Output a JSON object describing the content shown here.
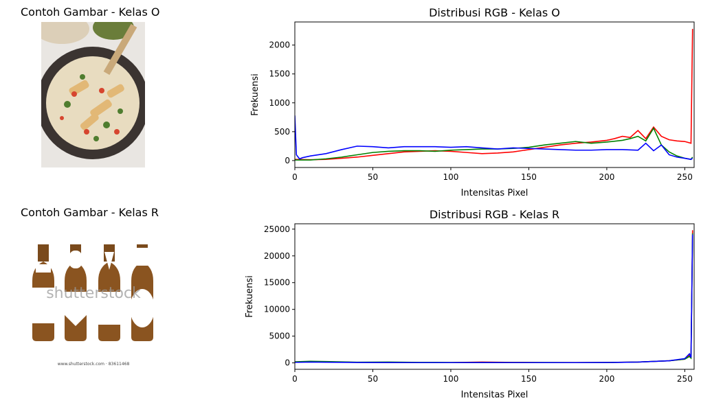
{
  "panels": [
    {
      "image_title": "Contoh Gambar - Kelas O",
      "image_subject": "food-photo"
    },
    {
      "image_title": "Contoh Gambar - Kelas R",
      "image_subject": "bottles-photo",
      "watermark": "shutterstock",
      "caption": "www.shutterstock.com · 83611468"
    }
  ],
  "chart_data": [
    {
      "type": "line",
      "title": "Distribusi RGB - Kelas O",
      "xlabel": "Intensitas Pixel",
      "ylabel": "Frekuensi",
      "xlim": [
        0,
        256
      ],
      "ylim": [
        -120,
        2400
      ],
      "xticks": [
        0,
        50,
        100,
        150,
        200,
        250
      ],
      "yticks": [
        0,
        500,
        1000,
        1500,
        2000
      ],
      "grid": false,
      "series": [
        {
          "color": "#ff0000",
          "x": [
            0,
            10,
            20,
            30,
            40,
            50,
            60,
            70,
            80,
            90,
            100,
            110,
            120,
            130,
            140,
            150,
            160,
            170,
            180,
            190,
            200,
            205,
            210,
            215,
            220,
            225,
            230,
            235,
            240,
            245,
            250,
            254,
            255
          ],
          "values": [
            20,
            15,
            20,
            40,
            60,
            90,
            120,
            150,
            160,
            170,
            160,
            140,
            120,
            130,
            150,
            190,
            230,
            270,
            300,
            320,
            350,
            380,
            420,
            400,
            520,
            380,
            580,
            420,
            360,
            340,
            330,
            300,
            2280
          ]
        },
        {
          "color": "#008000",
          "x": [
            0,
            10,
            20,
            30,
            40,
            50,
            60,
            70,
            80,
            90,
            100,
            110,
            120,
            130,
            140,
            150,
            160,
            170,
            180,
            190,
            200,
            210,
            215,
            220,
            225,
            230,
            235,
            240,
            245,
            250,
            254,
            255
          ],
          "values": [
            10,
            10,
            30,
            60,
            100,
            140,
            160,
            170,
            170,
            160,
            180,
            190,
            200,
            200,
            210,
            230,
            270,
            300,
            330,
            300,
            320,
            350,
            380,
            420,
            340,
            560,
            270,
            150,
            80,
            40,
            20,
            60
          ]
        },
        {
          "color": "#0000ff",
          "x": [
            0,
            1,
            3,
            5,
            10,
            20,
            30,
            40,
            50,
            60,
            70,
            80,
            90,
            100,
            110,
            120,
            130,
            140,
            150,
            160,
            170,
            180,
            190,
            200,
            210,
            220,
            225,
            230,
            235,
            240,
            245,
            250,
            254,
            255
          ],
          "values": [
            780,
            100,
            30,
            50,
            80,
            120,
            190,
            250,
            240,
            220,
            240,
            240,
            240,
            230,
            240,
            220,
            200,
            220,
            210,
            200,
            190,
            180,
            180,
            190,
            190,
            180,
            300,
            170,
            270,
            100,
            60,
            40,
            20,
            40
          ]
        }
      ]
    },
    {
      "type": "line",
      "title": "Distribusi RGB - Kelas R",
      "xlabel": "Intensitas Pixel",
      "ylabel": "Frekuensi",
      "xlim": [
        0,
        256
      ],
      "ylim": [
        -1200,
        26000
      ],
      "xticks": [
        0,
        50,
        100,
        150,
        200,
        250
      ],
      "yticks": [
        0,
        5000,
        10000,
        15000,
        20000,
        25000
      ],
      "grid": false,
      "series": [
        {
          "color": "#ff0000",
          "x": [
            0,
            10,
            20,
            40,
            60,
            80,
            100,
            120,
            140,
            160,
            180,
            200,
            220,
            240,
            250,
            253,
            254,
            255
          ],
          "values": [
            150,
            180,
            200,
            100,
            80,
            60,
            60,
            150,
            100,
            60,
            60,
            80,
            150,
            400,
            700,
            1500,
            900,
            24800
          ]
        },
        {
          "color": "#008000",
          "x": [
            0,
            10,
            20,
            40,
            60,
            80,
            100,
            120,
            140,
            160,
            180,
            200,
            220,
            240,
            250,
            253,
            254,
            255
          ],
          "values": [
            200,
            300,
            250,
            120,
            150,
            100,
            80,
            80,
            80,
            70,
            60,
            80,
            150,
            400,
            700,
            1200,
            900,
            24200
          ]
        },
        {
          "color": "#0000ff",
          "x": [
            0,
            10,
            20,
            40,
            60,
            80,
            100,
            120,
            140,
            160,
            180,
            200,
            220,
            240,
            250,
            253,
            254,
            255
          ],
          "values": [
            100,
            150,
            120,
            80,
            60,
            50,
            50,
            60,
            50,
            50,
            50,
            70,
            150,
            400,
            800,
            1700,
            1000,
            24000
          ]
        }
      ]
    }
  ]
}
